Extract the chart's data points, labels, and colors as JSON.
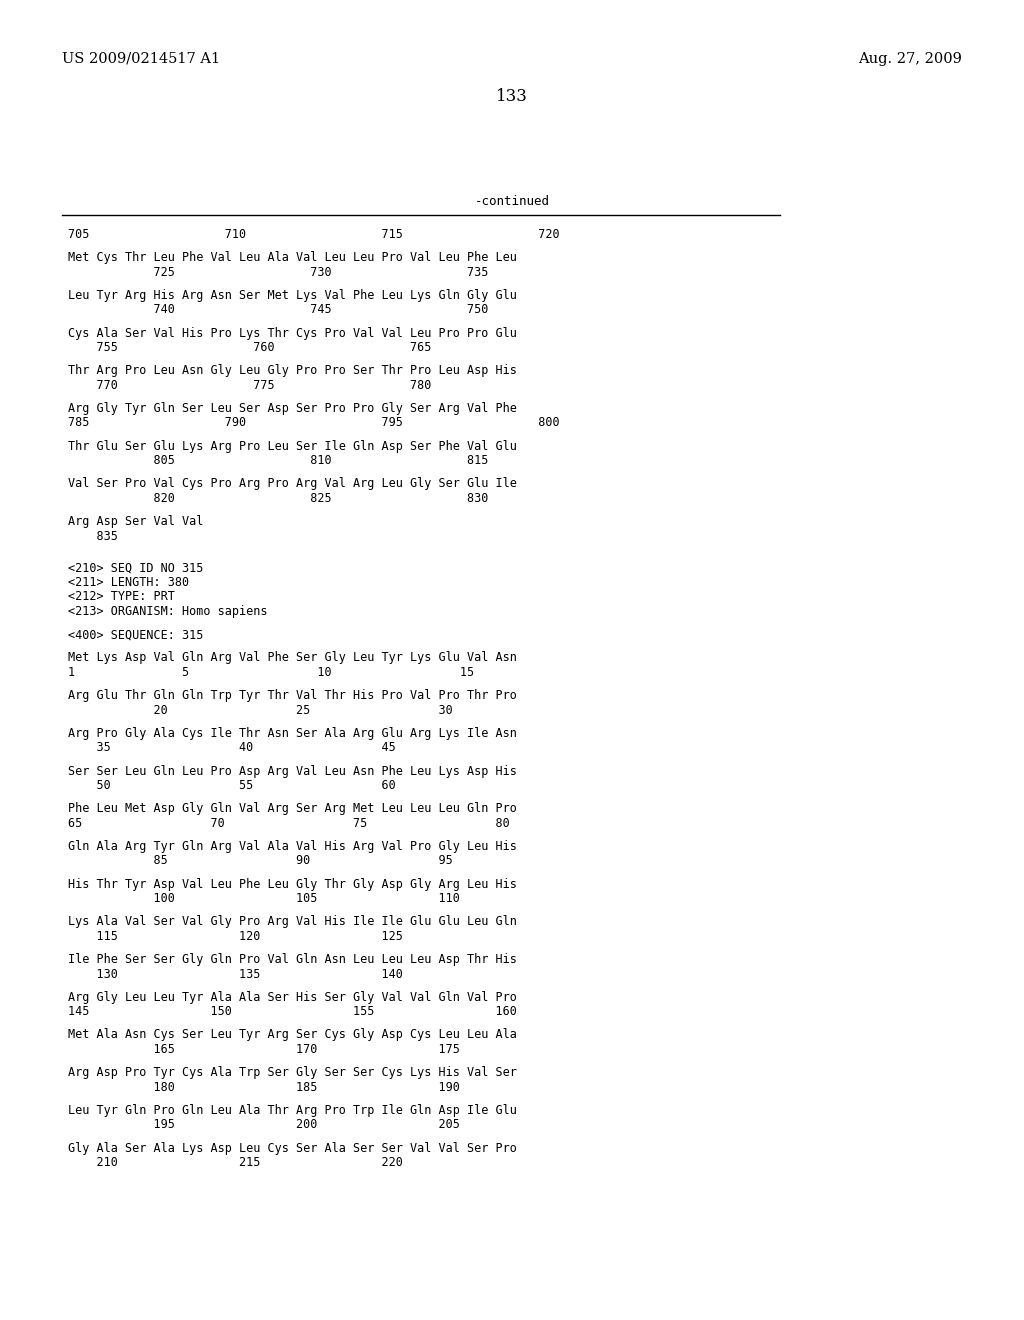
{
  "header_left": "US 2009/0214517 A1",
  "header_right": "Aug. 27, 2009",
  "page_number": "133",
  "continued_label": "-continued",
  "background_color": "#ffffff",
  "text_color": "#000000",
  "content_lines": [
    "705                   710                   715                   720",
    "",
    "Met Cys Thr Leu Phe Val Leu Ala Val Leu Leu Pro Val Leu Phe Leu",
    "            725                   730                   735",
    "",
    "Leu Tyr Arg His Arg Asn Ser Met Lys Val Phe Leu Lys Gln Gly Glu",
    "            740                   745                   750",
    "",
    "Cys Ala Ser Val His Pro Lys Thr Cys Pro Val Val Leu Pro Pro Glu",
    "    755                   760                   765",
    "",
    "Thr Arg Pro Leu Asn Gly Leu Gly Pro Pro Ser Thr Pro Leu Asp His",
    "    770                   775                   780",
    "",
    "Arg Gly Tyr Gln Ser Leu Ser Asp Ser Pro Pro Gly Ser Arg Val Phe",
    "785                   790                   795                   800",
    "",
    "Thr Glu Ser Glu Lys Arg Pro Leu Ser Ile Gln Asp Ser Phe Val Glu",
    "            805                   810                   815",
    "",
    "Val Ser Pro Val Cys Pro Arg Pro Arg Val Arg Leu Gly Ser Glu Ile",
    "            820                   825                   830",
    "",
    "Arg Asp Ser Val Val",
    "    835",
    "",
    "",
    "<210> SEQ ID NO 315",
    "<211> LENGTH: 380",
    "<212> TYPE: PRT",
    "<213> ORGANISM: Homo sapiens",
    "",
    "<400> SEQUENCE: 315",
    "",
    "Met Lys Asp Val Gln Arg Val Phe Ser Gly Leu Tyr Lys Glu Val Asn",
    "1               5                  10                  15",
    "",
    "Arg Glu Thr Gln Gln Trp Tyr Thr Val Thr His Pro Val Pro Thr Pro",
    "            20                  25                  30",
    "",
    "Arg Pro Gly Ala Cys Ile Thr Asn Ser Ala Arg Glu Arg Lys Ile Asn",
    "    35                  40                  45",
    "",
    "Ser Ser Leu Gln Leu Pro Asp Arg Val Leu Asn Phe Leu Lys Asp His",
    "    50                  55                  60",
    "",
    "Phe Leu Met Asp Gly Gln Val Arg Ser Arg Met Leu Leu Leu Gln Pro",
    "65                  70                  75                  80",
    "",
    "Gln Ala Arg Tyr Gln Arg Val Ala Val His Arg Val Pro Gly Leu His",
    "            85                  90                  95",
    "",
    "His Thr Tyr Asp Val Leu Phe Leu Gly Thr Gly Asp Gly Arg Leu His",
    "            100                 105                 110",
    "",
    "Lys Ala Val Ser Val Gly Pro Arg Val His Ile Ile Glu Glu Leu Gln",
    "    115                 120                 125",
    "",
    "Ile Phe Ser Ser Gly Gln Pro Val Gln Asn Leu Leu Leu Asp Thr His",
    "    130                 135                 140",
    "",
    "Arg Gly Leu Leu Tyr Ala Ala Ser His Ser Gly Val Val Gln Val Pro",
    "145                 150                 155                 160",
    "",
    "Met Ala Asn Cys Ser Leu Tyr Arg Ser Cys Gly Asp Cys Leu Leu Ala",
    "            165                 170                 175",
    "",
    "Arg Asp Pro Tyr Cys Ala Trp Ser Gly Ser Ser Cys Lys His Val Ser",
    "            180                 185                 190",
    "",
    "Leu Tyr Gln Pro Gln Leu Ala Thr Arg Pro Trp Ile Gln Asp Ile Glu",
    "            195                 200                 205",
    "",
    "Gly Ala Ser Ala Lys Asp Leu Cys Ser Ala Ser Ser Val Val Ser Pro",
    "    210                 215                 220"
  ]
}
